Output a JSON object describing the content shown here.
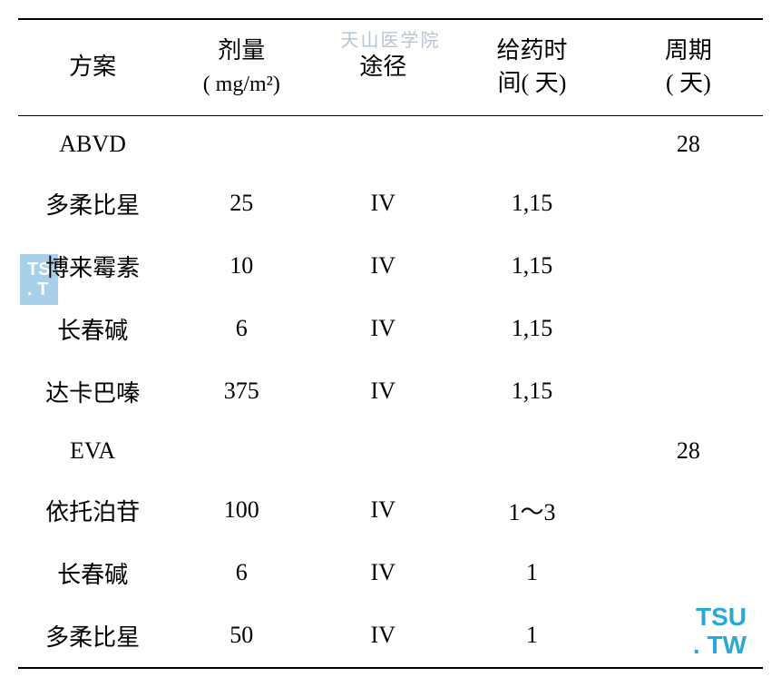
{
  "watermarks": {
    "top": "天山医学院",
    "left_line1": "TS",
    "left_line2": ". T",
    "right_line1": "TSU",
    "right_line2": ". TW"
  },
  "table": {
    "headers": {
      "regimen": "方案",
      "dose_line1": "剂量",
      "dose_line2": "( mg/m²)",
      "route": "途径",
      "timing_line1": "给药时",
      "timing_line2": "间( 天)",
      "cycle_line1": "周期",
      "cycle_line2": "( 天)"
    },
    "rows": [
      {
        "regimen": "ABVD",
        "dose": "",
        "route": "",
        "timing": "",
        "cycle": "28"
      },
      {
        "regimen": "多柔比星",
        "dose": "25",
        "route": "IV",
        "timing": "1,15",
        "cycle": ""
      },
      {
        "regimen": "博来霉素",
        "dose": "10",
        "route": "IV",
        "timing": "1,15",
        "cycle": ""
      },
      {
        "regimen": "长春碱",
        "dose": "6",
        "route": "IV",
        "timing": "1,15",
        "cycle": ""
      },
      {
        "regimen": "达卡巴嗪",
        "dose": "375",
        "route": "IV",
        "timing": "1,15",
        "cycle": ""
      },
      {
        "regimen": "EVA",
        "dose": "",
        "route": "",
        "timing": "",
        "cycle": "28"
      },
      {
        "regimen": "依托泊苷",
        "dose": "100",
        "route": "IV",
        "timing": "1～3",
        "cycle": ""
      },
      {
        "regimen": "长春碱",
        "dose": "6",
        "route": "IV",
        "timing": "1",
        "cycle": ""
      },
      {
        "regimen": "多柔比星",
        "dose": "50",
        "route": "IV",
        "timing": "1",
        "cycle": ""
      }
    ]
  },
  "style": {
    "font_size_body": 26,
    "font_size_unit": 24,
    "text_color": "#000000",
    "background": "#ffffff",
    "border_color": "#000000",
    "watermark_top_color": "#b8c5d6",
    "watermark_left_bg": "#a8d0e8",
    "watermark_left_fg": "#ffffff",
    "watermark_right_color": "#2ba8d4"
  }
}
